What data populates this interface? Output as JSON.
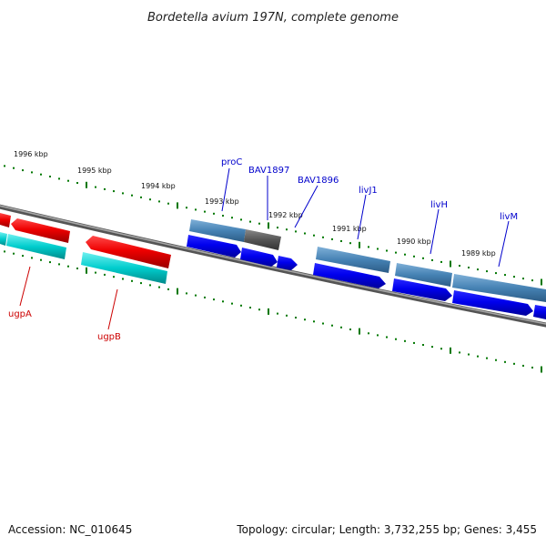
{
  "title": "Bordetella avium 197N, complete genome",
  "footer": {
    "accession": "Accession: NC_010645",
    "summary": "Topology: circular; Length: 3,732,255 bp; Genes: 3,455"
  },
  "ticks": [
    {
      "label": "1996 kbp"
    },
    {
      "label": "1995 kbp"
    },
    {
      "label": "1994 kbp"
    },
    {
      "label": "1993 kbp"
    },
    {
      "label": "1992 kbp"
    },
    {
      "label": "1991 kbp"
    },
    {
      "label": "1990 kbp"
    },
    {
      "label": "1989 kbp"
    }
  ],
  "gene_labels": [
    {
      "name": "proC",
      "color": "#0000cc"
    },
    {
      "name": "BAV1897",
      "color": "#0000cc"
    },
    {
      "name": "BAV1896",
      "color": "#0000cc"
    },
    {
      "name": "livJ1",
      "color": "#0000cc"
    },
    {
      "name": "livH",
      "color": "#0000cc"
    },
    {
      "name": "livM",
      "color": "#0000cc"
    },
    {
      "name": "ugpA",
      "color": "#cc0000"
    },
    {
      "name": "ugpB",
      "color": "#cc0000"
    }
  ],
  "colors": {
    "forward_cds": "#0000ee",
    "forward_gene": "#4682b4",
    "reverse_cds": "#ee0000",
    "reverse_gene": "#00cdcd",
    "pseudo_gene": "#555555",
    "backbone": "#808080",
    "ticks": "#007700"
  }
}
